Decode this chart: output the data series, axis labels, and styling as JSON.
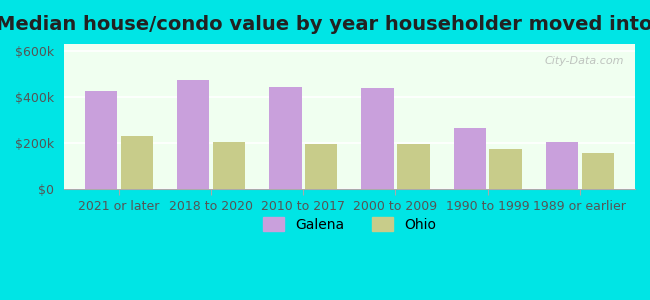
{
  "title": "Median house/condo value by year householder moved into unit",
  "categories": [
    "2021 or later",
    "2018 to 2020",
    "2010 to 2017",
    "2000 to 2009",
    "1990 to 1999",
    "1989 or earlier"
  ],
  "galena_values": [
    425000,
    475000,
    445000,
    440000,
    265000,
    205000
  ],
  "ohio_values": [
    230000,
    205000,
    195000,
    195000,
    175000,
    155000
  ],
  "galena_color": "#c9a0dc",
  "ohio_color": "#c8cc8a",
  "background_color": "#00e5e5",
  "plot_bg_start": "#f0fff0",
  "plot_bg_end": "#ffffff",
  "ylabel_ticks": [
    0,
    200000,
    400000,
    600000
  ],
  "ylabel_labels": [
    "$0",
    "$200k",
    "$400k",
    "$600k"
  ],
  "ylim": [
    0,
    630000
  ],
  "legend_labels": [
    "Galena",
    "Ohio"
  ],
  "watermark": "City-Data.com",
  "title_fontsize": 14,
  "tick_fontsize": 9,
  "legend_fontsize": 10
}
